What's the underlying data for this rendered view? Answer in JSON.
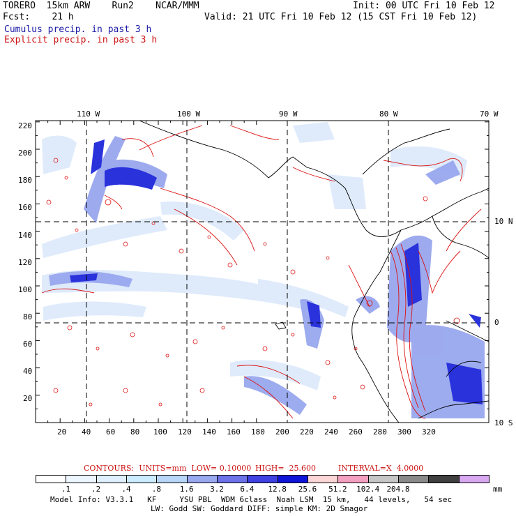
{
  "header": {
    "model_line": "TORERO  15km ARW    Run2    NCAR/MMM",
    "init": "Init: 00 UTC Fri 10 Feb 12",
    "fcst": "Fcst:    21 h",
    "valid": "Valid: 21 UTC Fri 10 Feb 12 (15 CST Fri 10 Feb 12)",
    "cumulus_label": "Cumulus precip. in past 3 h",
    "explicit_label": "Explicit precip. in past 3 h"
  },
  "map": {
    "top_lon_labels": [
      "110 W",
      "100 W",
      "90 W",
      "80 W",
      "70 W"
    ],
    "right_lat_labels": [
      "10 N",
      "0",
      "10 S"
    ],
    "y_ticks": [
      "220",
      "200",
      "180",
      "160",
      "140",
      "120",
      "100",
      "80",
      "60",
      "40",
      "20"
    ],
    "x_ticks": [
      "20",
      "40",
      "60",
      "80",
      "100",
      "120",
      "140",
      "160",
      "180",
      "200",
      "220",
      "240",
      "260",
      "280",
      "300",
      "320"
    ]
  },
  "contours_info": {
    "contours": "CONTOURS:  UNITS=mm  LOW= 0.10000",
    "high": "HIGH=  25.600",
    "interval": "INTERVAL=X  4.0000"
  },
  "colorbar": {
    "colors": [
      "#ffffff",
      "#eef6ff",
      "#e0f0ff",
      "#ccecff",
      "#b9d6f8",
      "#9aa8f0",
      "#6d72e8",
      "#3f42e0",
      "#0f14d8",
      "#fbd6d6",
      "#f4a0c0",
      "#c6c6c6",
      "#8a8a8a",
      "#404040",
      "#d8a8f0"
    ],
    "labels": [
      ".1",
      ".2",
      ".4",
      ".8",
      "1.6",
      "3.2",
      "6.4",
      "12.8",
      "25.6",
      "51.2",
      "102.4",
      "204.8"
    ],
    "units": "mm"
  },
  "footer": {
    "line1": "Model Info: V3.3.1   KF     YSU PBL  WDM 6class  Noah LSM  15 km,   44 levels,   54 sec",
    "line2": "LW: Godd SW: Goddard DIFF: simple KM: 2D Smagor"
  }
}
